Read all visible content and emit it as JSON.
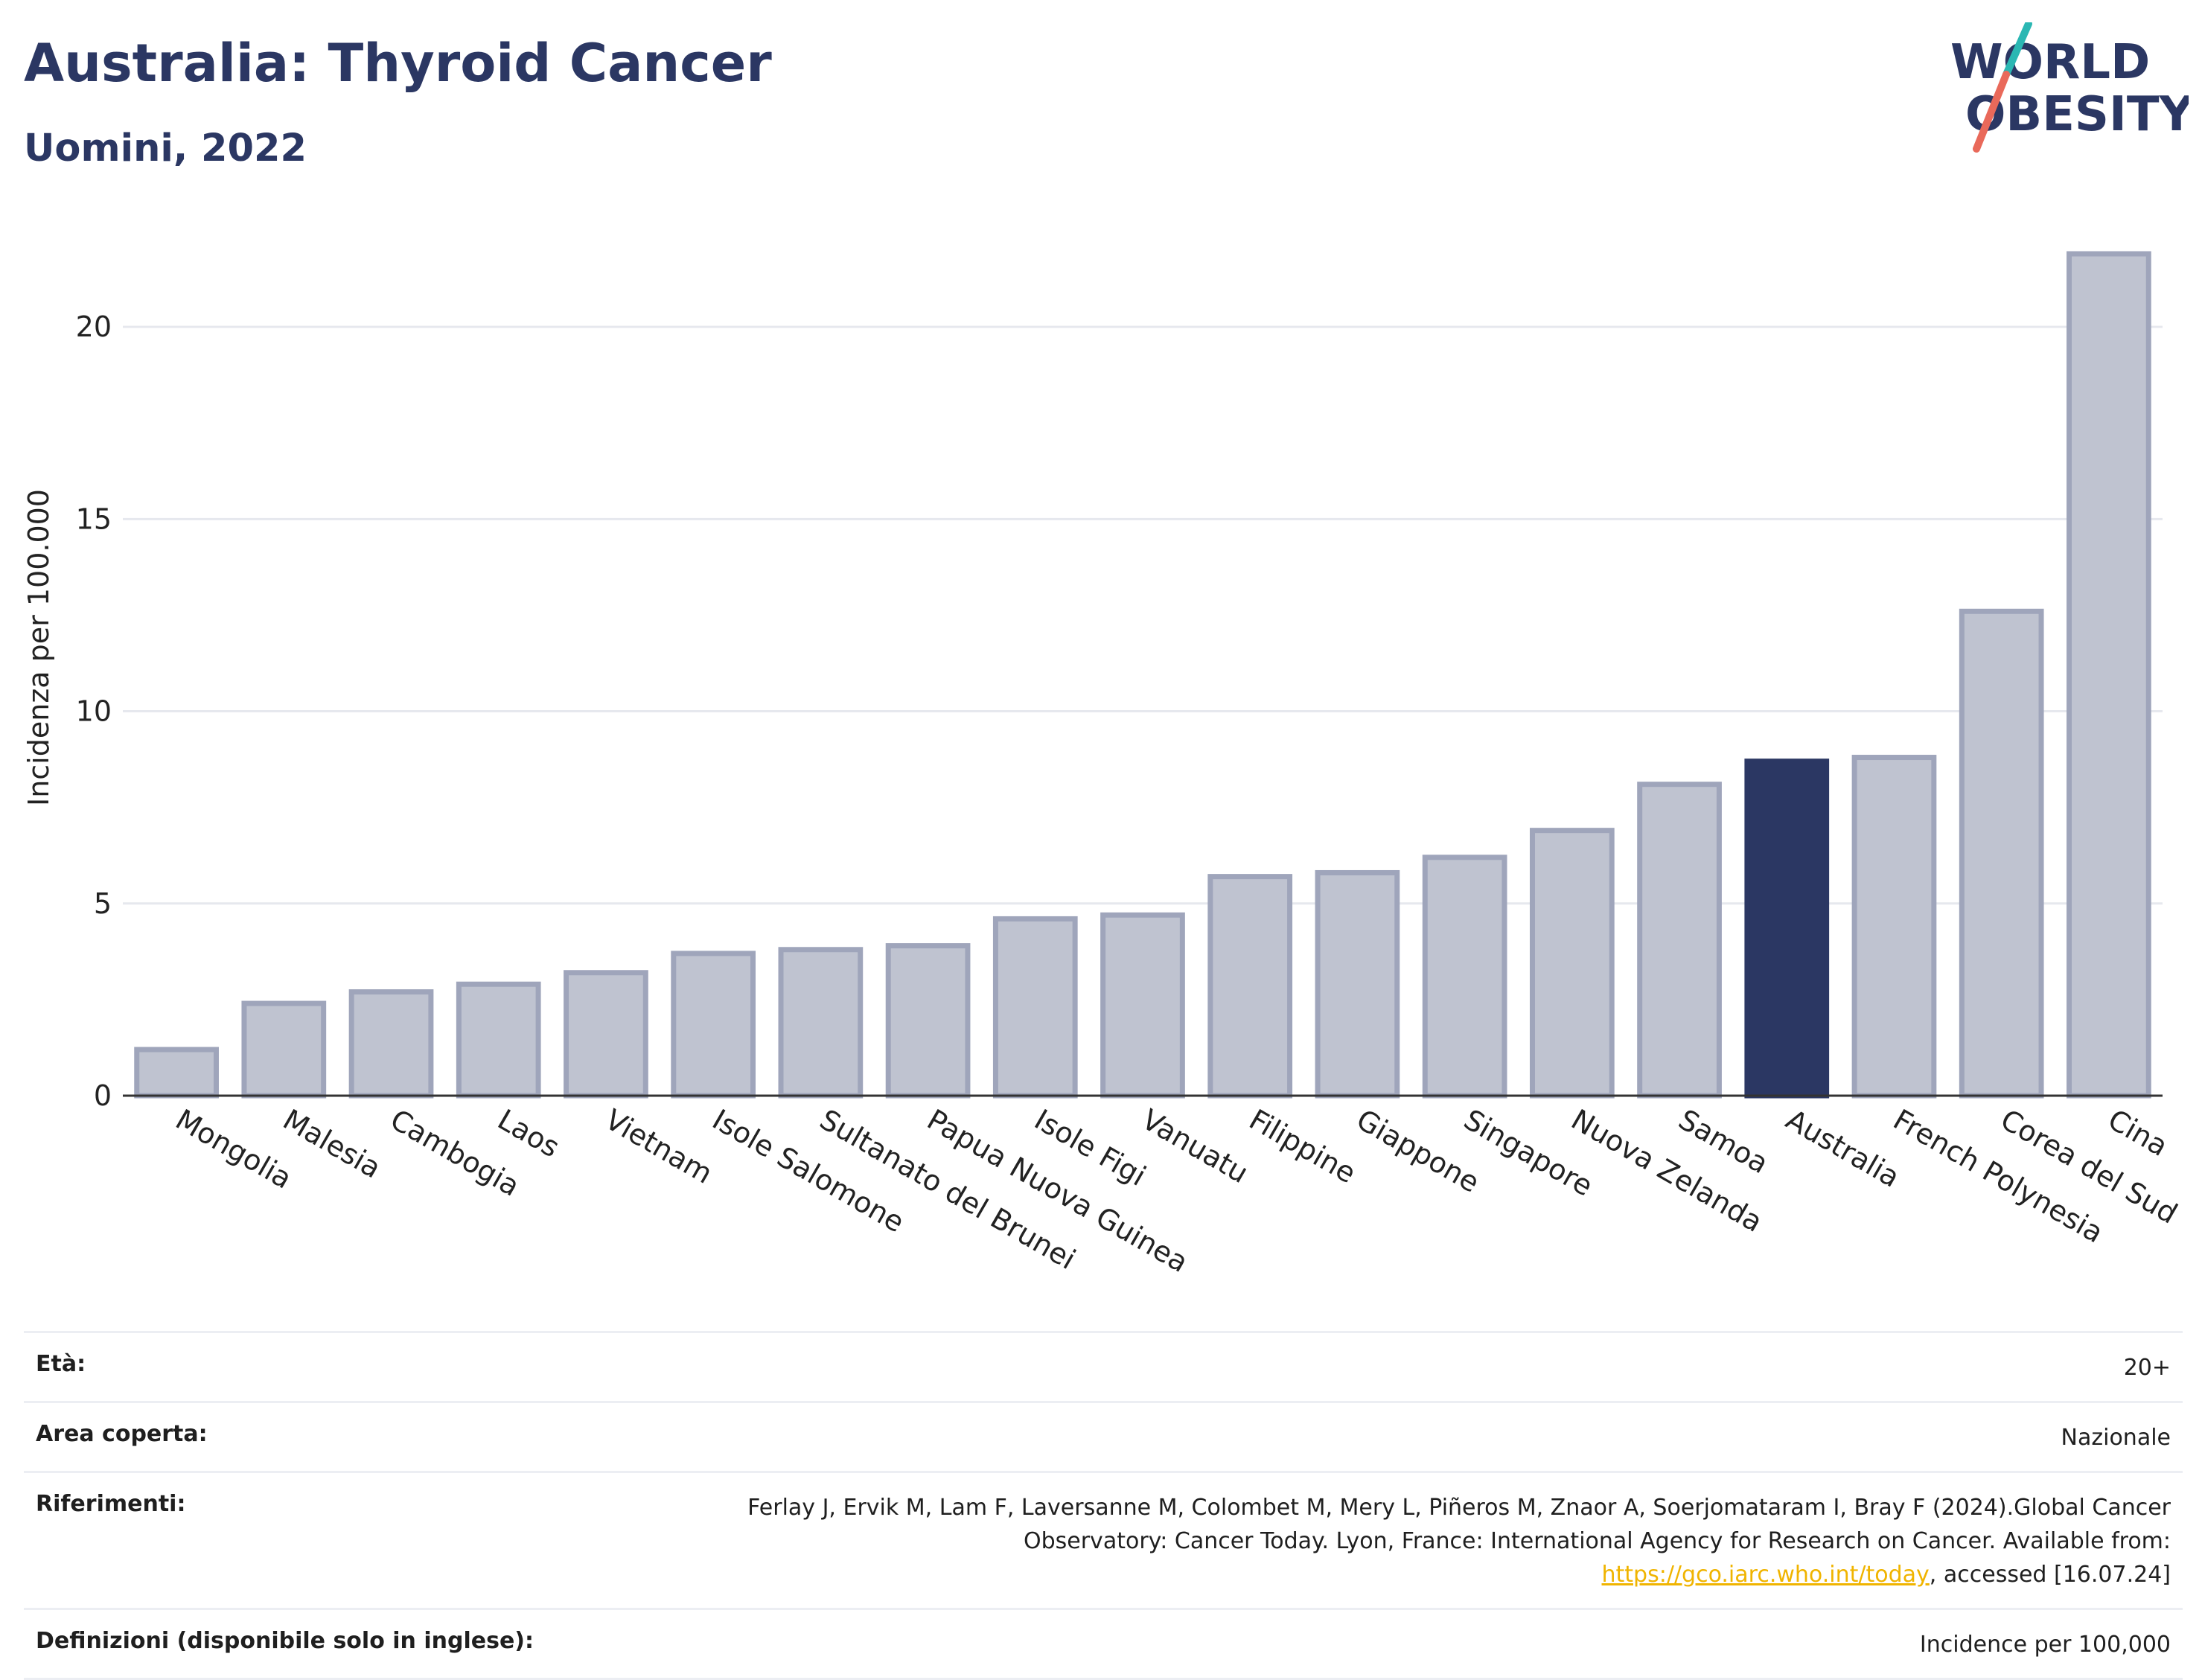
{
  "header": {
    "title": "Australia: Thyroid Cancer",
    "subtitle": "Uomini, 2022"
  },
  "logo": {
    "line1": "WORLD",
    "line2": "OBESITY",
    "colors": {
      "text": "#2b3763",
      "slash_top": "#2bb7b3",
      "slash_bottom": "#e9695a"
    }
  },
  "chart_data": {
    "type": "bar",
    "title": "Australia: Thyroid Cancer",
    "subtitle": "Uomini, 2022",
    "ylabel": "Incidenza per 100.000",
    "xlabel": "",
    "ylim": [
      0,
      22.5
    ],
    "yticks": [
      0,
      5,
      10,
      15,
      20
    ],
    "grid": true,
    "highlight": "Australia",
    "colors": {
      "bar": "#bfc3d0",
      "bar_edge": "#9fa5bb",
      "highlight": "#2b3763"
    },
    "categories": [
      "Mongolia",
      "Malesia",
      "Cambogia",
      "Laos",
      "Vietnam",
      "Isole Salomone",
      "Sultanato del Brunei",
      "Papua Nuova Guinea",
      "Isole Figi",
      "Vanuatu",
      "Filippine",
      "Giappone",
      "Singapore",
      "Nuova Zelanda",
      "Samoa",
      "Australia",
      "French Polynesia",
      "Corea del Sud",
      "Cina"
    ],
    "values": [
      1.2,
      2.4,
      2.7,
      2.9,
      3.2,
      3.7,
      3.8,
      3.9,
      4.6,
      4.7,
      5.7,
      5.8,
      6.2,
      6.9,
      8.1,
      8.7,
      8.8,
      12.6,
      21.9
    ]
  },
  "info": {
    "age": {
      "label": "Età:",
      "value": "20+"
    },
    "area": {
      "label": "Area coperta:",
      "value": "Nazionale"
    },
    "refs": {
      "label": "Riferimenti:",
      "text_before": "Ferlay J, Ervik M, Lam F, Laversanne M, Colombet M, Mery L, Piñeros M, Znaor A, Soerjomataram I, Bray F (2024).Global Cancer Observatory: Cancer Today. Lyon, France: International Agency for Research on Cancer. Available from: ",
      "link": "https://gco.iarc.who.int/today",
      "text_after": ", accessed [16.07.24]"
    },
    "definitions": {
      "label": "Definizioni (disponibile solo in inglese):",
      "value": "Incidence per 100,000"
    }
  }
}
